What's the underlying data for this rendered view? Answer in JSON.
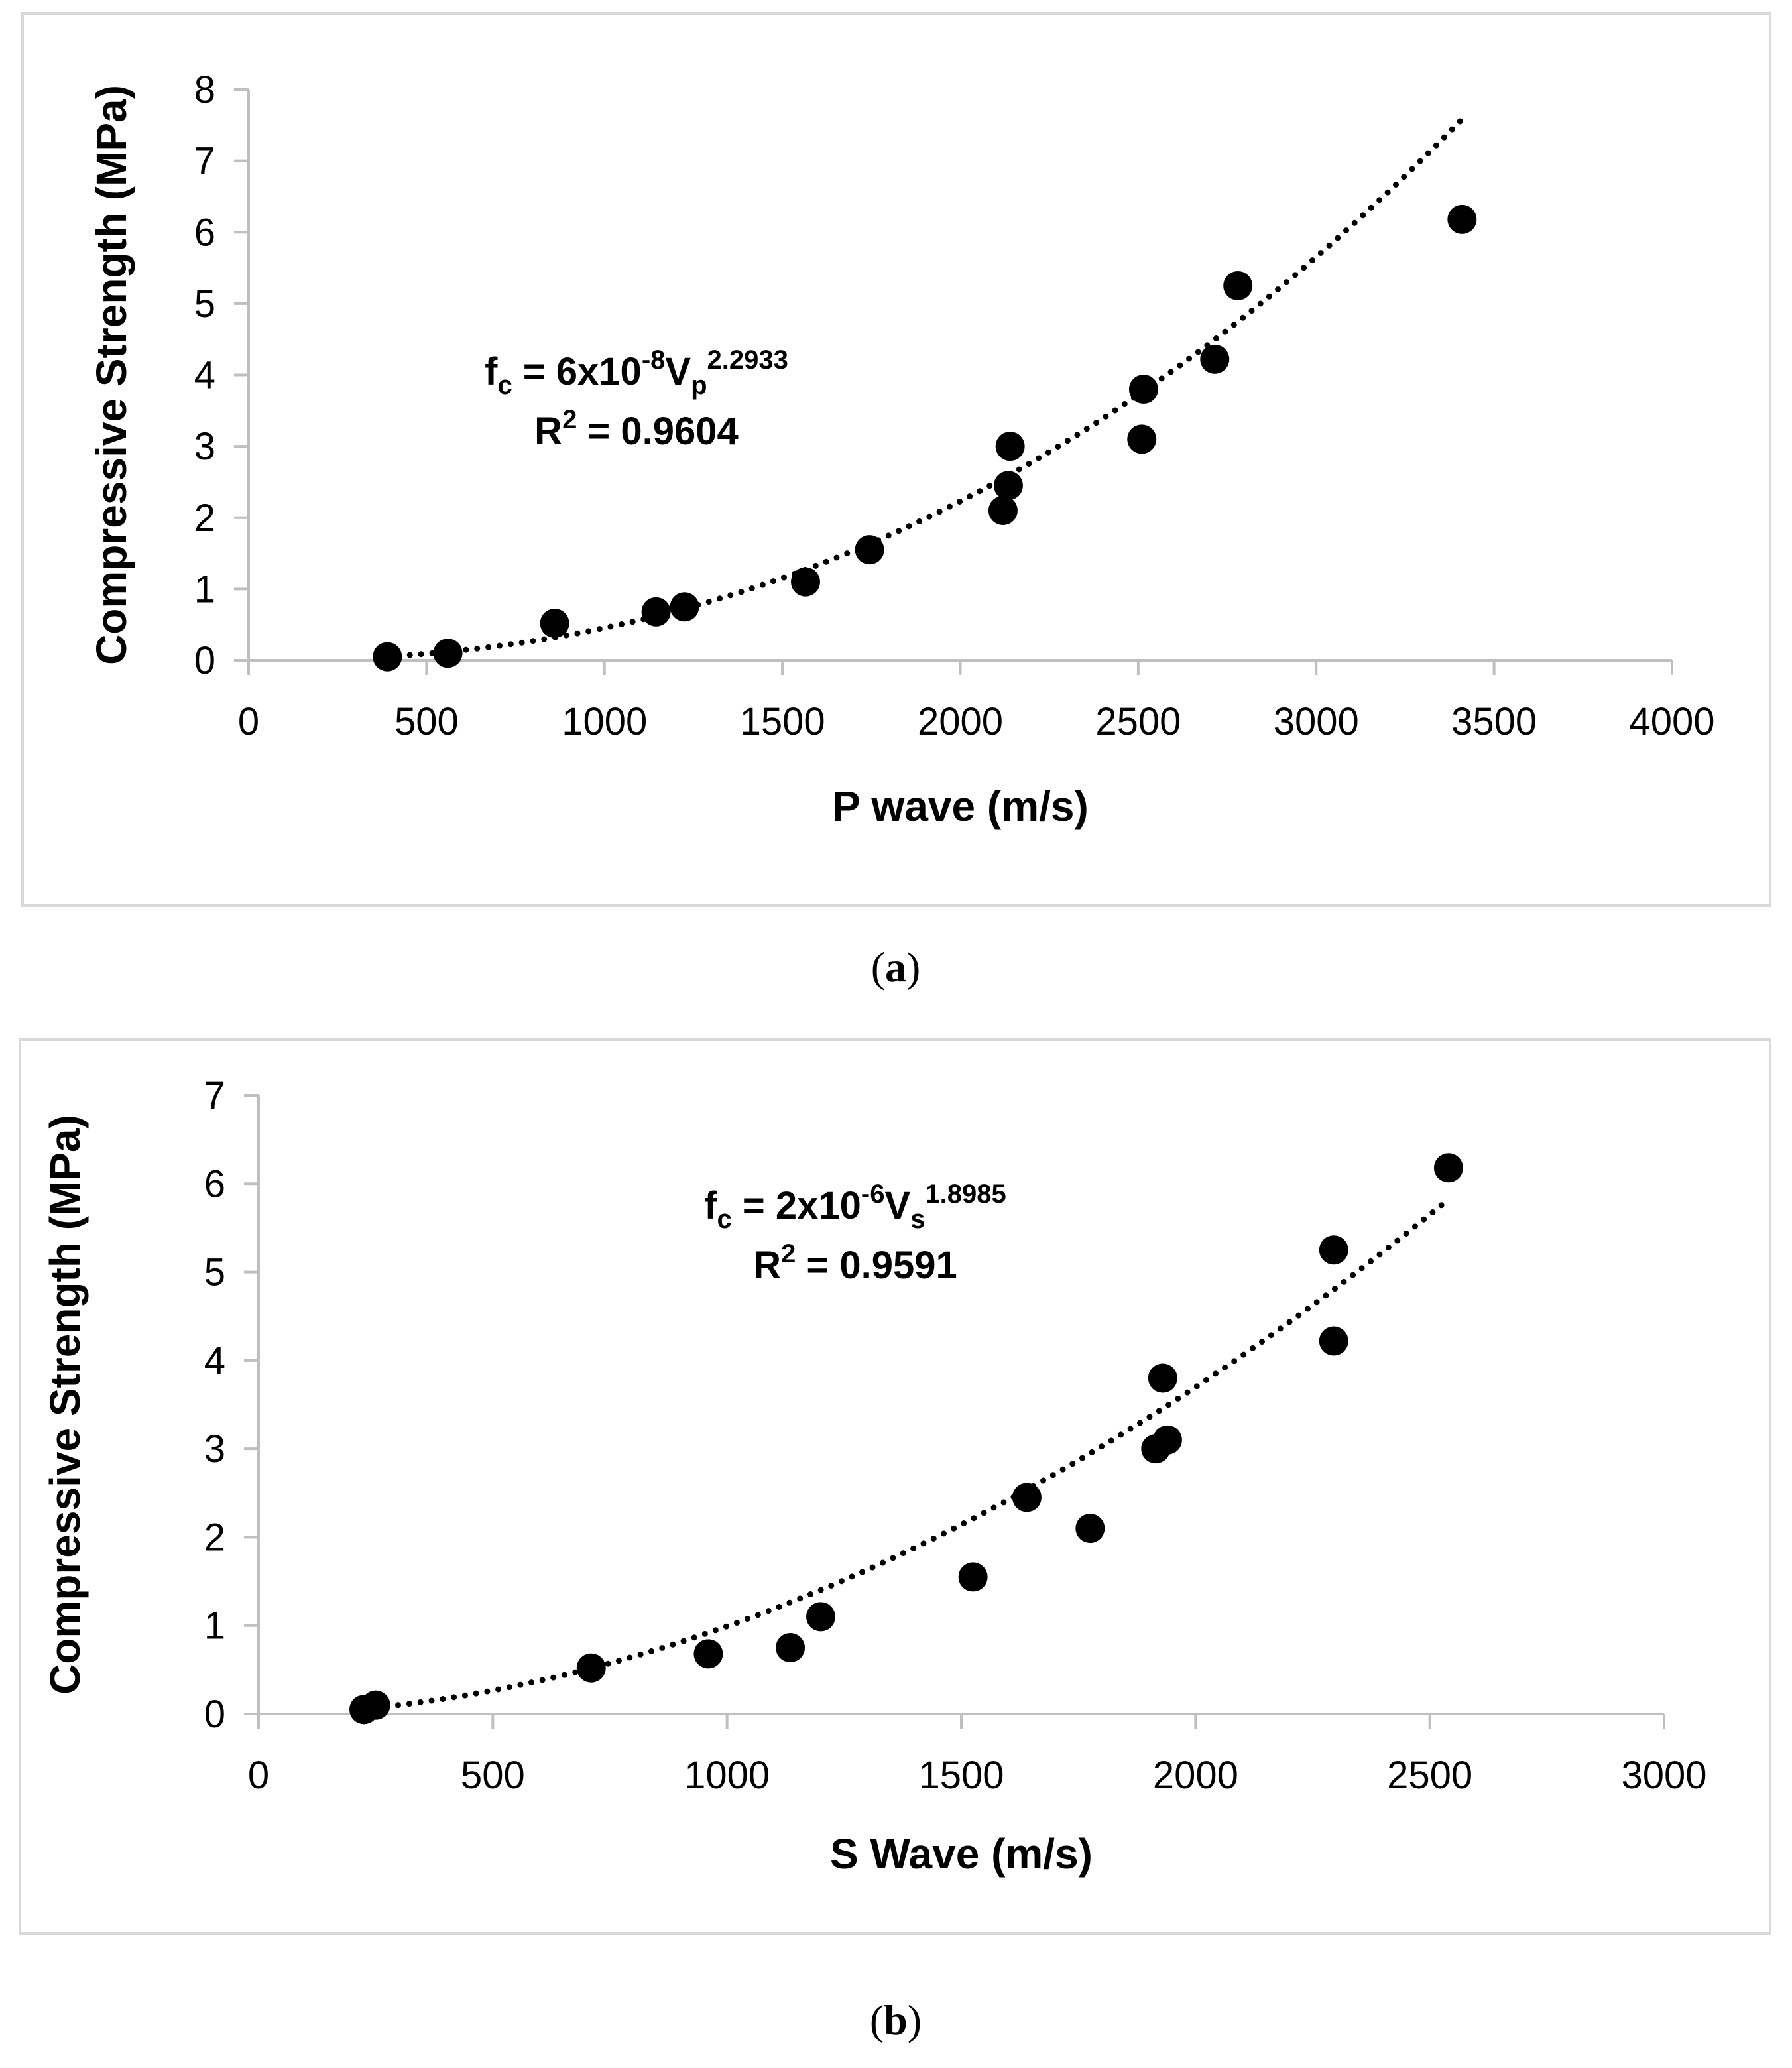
{
  "chart_data": [
    {
      "type": "scatter",
      "panel_label": "(a)",
      "panel_letter": "a",
      "xlabel": "P wave (m/s)",
      "ylabel": "Compressive Strength (MPa)",
      "xlim": [
        0,
        4000
      ],
      "ylim": [
        0,
        8
      ],
      "xticks": [
        0,
        500,
        1000,
        1500,
        2000,
        2500,
        3000,
        3500,
        4000
      ],
      "yticks": [
        0,
        1,
        2,
        3,
        4,
        5,
        6,
        7,
        8
      ],
      "grid": false,
      "series": [
        {
          "name": "data",
          "x": [
            390,
            560,
            860,
            1145,
            1225,
            1565,
            1745,
            2120,
            2135,
            2140,
            2510,
            2515,
            2715,
            2780,
            3410
          ],
          "y": [
            0.05,
            0.1,
            0.52,
            0.68,
            0.75,
            1.1,
            1.55,
            2.1,
            2.45,
            3.0,
            3.1,
            3.8,
            4.22,
            5.25,
            6.18
          ]
        }
      ],
      "trendline": {
        "type": "power",
        "coefficient": 6e-08,
        "exponent": 2.2933,
        "x_range": [
          390,
          3410
        ],
        "style": "dotted"
      },
      "equation": {
        "lhs": "f",
        "lhs_sub": "c",
        "mid": " = 6x10",
        "exp1": "-8",
        "var": "V",
        "var_sub": "p",
        "exp2": "2.2933"
      },
      "r2": {
        "label": "R",
        "sup": "2",
        "value": " = 0.9604"
      }
    },
    {
      "type": "scatter",
      "panel_label": "(b)",
      "panel_letter": "b",
      "xlabel": "S Wave (m/s)",
      "ylabel": "Compressive Strength (MPa)",
      "xlim": [
        0,
        3000
      ],
      "ylim": [
        0,
        7
      ],
      "xticks": [
        0,
        500,
        1000,
        1500,
        2000,
        2500,
        3000
      ],
      "yticks": [
        0,
        1,
        2,
        3,
        4,
        5,
        6,
        7
      ],
      "grid": false,
      "series": [
        {
          "name": "data",
          "x": [
            225,
            250,
            710,
            960,
            1135,
            1200,
            1525,
            1640,
            1775,
            1915,
            1930,
            1940,
            2295,
            2295,
            2540
          ],
          "y": [
            0.05,
            0.1,
            0.52,
            0.68,
            0.75,
            1.1,
            1.55,
            2.45,
            2.1,
            3.0,
            3.8,
            3.1,
            4.22,
            5.25,
            6.18
          ]
        }
      ],
      "trendline": {
        "type": "power",
        "coefficient": 2e-06,
        "exponent": 1.8985,
        "x_range": [
          250,
          2540
        ],
        "style": "dotted"
      },
      "equation": {
        "lhs": "f",
        "lhs_sub": "c",
        "mid": " = 2x10",
        "exp1": "-6",
        "var": "V",
        "var_sub": "s",
        "exp2": "1.8985"
      },
      "r2": {
        "label": "R",
        "sup": "2",
        "value": " = 0.9591"
      }
    }
  ]
}
